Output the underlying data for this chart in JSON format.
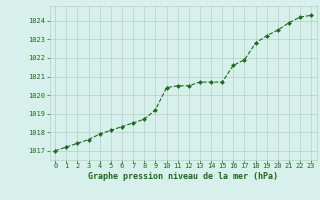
{
  "x": [
    0,
    1,
    2,
    3,
    4,
    5,
    6,
    7,
    8,
    9,
    10,
    11,
    12,
    13,
    14,
    15,
    16,
    17,
    18,
    19,
    20,
    21,
    22,
    23
  ],
  "y": [
    1017.0,
    1017.2,
    1017.4,
    1017.6,
    1017.9,
    1018.1,
    1018.3,
    1018.5,
    1018.7,
    1019.2,
    1020.4,
    1020.5,
    1020.5,
    1020.7,
    1020.7,
    1020.7,
    1021.6,
    1021.9,
    1022.8,
    1023.2,
    1023.5,
    1023.9,
    1024.2,
    1024.3
  ],
  "line_color": "#1a6b1a",
  "marker_color": "#1a6b1a",
  "bg_color": "#d8f0eb",
  "plot_bg": "#d8f0eb",
  "grid_color": "#b0cfc8",
  "xlabel": "Graphe pression niveau de la mer (hPa)",
  "xlabel_color": "#1a6b1a",
  "tick_color": "#1a6b1a",
  "ylim": [
    1016.5,
    1024.8
  ],
  "yticks": [
    1017,
    1018,
    1019,
    1020,
    1021,
    1022,
    1023,
    1024
  ],
  "xticks": [
    0,
    1,
    2,
    3,
    4,
    5,
    6,
    7,
    8,
    9,
    10,
    11,
    12,
    13,
    14,
    15,
    16,
    17,
    18,
    19,
    20,
    21,
    22,
    23
  ]
}
